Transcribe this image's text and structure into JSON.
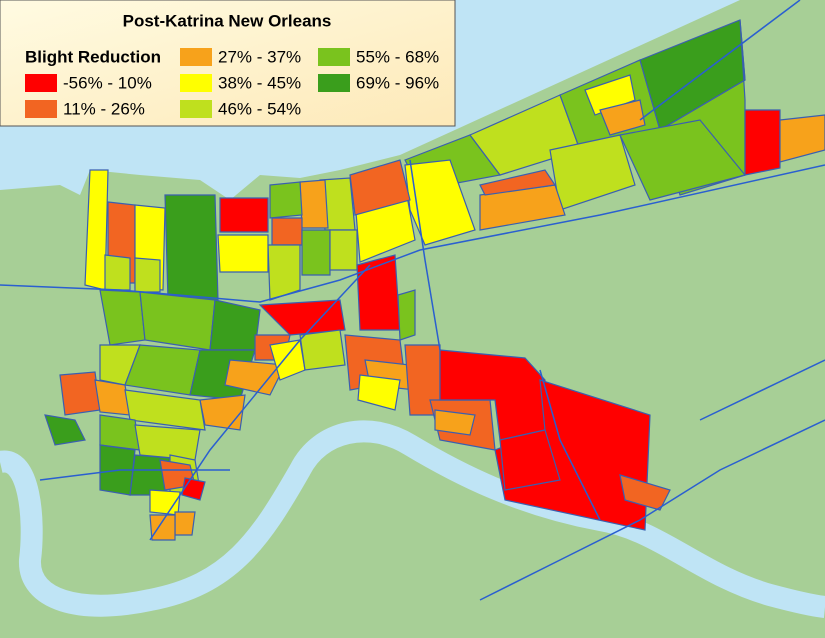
{
  "title": "Post-Katrina New Orleans",
  "legend": {
    "title": "Blight Reduction",
    "items": [
      {
        "label": "-56% - 10%",
        "color": "#ff0000"
      },
      {
        "label": "11% - 26%",
        "color": "#f26522"
      },
      {
        "label": "27% - 37%",
        "color": "#f7a21b"
      },
      {
        "label": "38% - 45%",
        "color": "#ffff00"
      },
      {
        "label": "46% - 54%",
        "color": "#bfe01e"
      },
      {
        "label": "55% - 68%",
        "color": "#7ac31e"
      },
      {
        "label": "69% - 96%",
        "color": "#3a9e1c"
      }
    ]
  }
}
